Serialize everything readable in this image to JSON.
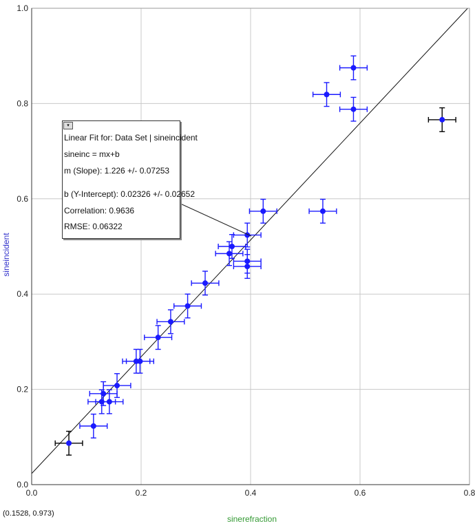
{
  "chart_data": {
    "type": "scatter",
    "xlabel": "sinerefraction",
    "ylabel": "sineincident",
    "xlim": [
      0.0,
      0.8
    ],
    "ylim": [
      0.0,
      1.0
    ],
    "xticks": [
      "0.0",
      "0.2",
      "0.4",
      "0.6",
      "0.8"
    ],
    "yticks": [
      "0.0",
      "0.2",
      "0.4",
      "0.6",
      "0.8",
      "1.0"
    ],
    "grid": true,
    "colors": {
      "points": "#1a1aff",
      "errorbar": "#1a1aff",
      "highlight": "#000000",
      "axis_title_y": "#3333cc",
      "axis_title_x": "#339933"
    },
    "points": [
      {
        "x": 0.068,
        "y": 0.087,
        "xerr": 0.025,
        "yerr": 0.025,
        "highlight": true
      },
      {
        "x": 0.113,
        "y": 0.123,
        "xerr": 0.025,
        "yerr": 0.025
      },
      {
        "x": 0.128,
        "y": 0.174,
        "xerr": 0.025,
        "yerr": 0.025
      },
      {
        "x": 0.131,
        "y": 0.191,
        "xerr": 0.025,
        "yerr": 0.025
      },
      {
        "x": 0.142,
        "y": 0.174,
        "xerr": 0.025,
        "yerr": 0.025
      },
      {
        "x": 0.156,
        "y": 0.208,
        "xerr": 0.025,
        "yerr": 0.025
      },
      {
        "x": 0.191,
        "y": 0.259,
        "xerr": 0.025,
        "yerr": 0.025
      },
      {
        "x": 0.198,
        "y": 0.259,
        "xerr": 0.025,
        "yerr": 0.025
      },
      {
        "x": 0.231,
        "y": 0.309,
        "xerr": 0.025,
        "yerr": 0.025
      },
      {
        "x": 0.254,
        "y": 0.342,
        "xerr": 0.025,
        "yerr": 0.025
      },
      {
        "x": 0.285,
        "y": 0.375,
        "xerr": 0.025,
        "yerr": 0.025
      },
      {
        "x": 0.317,
        "y": 0.423,
        "xerr": 0.025,
        "yerr": 0.025
      },
      {
        "x": 0.361,
        "y": 0.485,
        "xerr": 0.025,
        "yerr": 0.025
      },
      {
        "x": 0.366,
        "y": 0.5,
        "xerr": 0.025,
        "yerr": 0.025
      },
      {
        "x": 0.394,
        "y": 0.469,
        "xerr": 0.025,
        "yerr": 0.025
      },
      {
        "x": 0.394,
        "y": 0.458,
        "xerr": 0.025,
        "yerr": 0.025
      },
      {
        "x": 0.394,
        "y": 0.524,
        "xerr": 0.025,
        "yerr": 0.025
      },
      {
        "x": 0.423,
        "y": 0.574,
        "xerr": 0.025,
        "yerr": 0.025
      },
      {
        "x": 0.532,
        "y": 0.574,
        "xerr": 0.025,
        "yerr": 0.025
      },
      {
        "x": 0.539,
        "y": 0.819,
        "xerr": 0.025,
        "yerr": 0.025
      },
      {
        "x": 0.588,
        "y": 0.788,
        "xerr": 0.025,
        "yerr": 0.025
      },
      {
        "x": 0.588,
        "y": 0.875,
        "xerr": 0.025,
        "yerr": 0.025
      },
      {
        "x": 0.75,
        "y": 0.766,
        "xerr": 0.025,
        "yerr": 0.025,
        "highlight": true
      }
    ],
    "fit": {
      "slope": 1.226,
      "intercept": 0.02326
    }
  },
  "fit_box": {
    "title": "Linear Fit for: Data Set | sineincident",
    "equation": "sineinc = mx+b",
    "slope": "m (Slope): 1.226 +/- 0.07253",
    "intercept": "b (Y-Intercept): 0.02326 +/- 0.02652",
    "correlation": "Correlation: 0.9636",
    "rmse": "RMSE: 0.06322"
  },
  "coordinate_readout": "(0.1528, 0.973)"
}
